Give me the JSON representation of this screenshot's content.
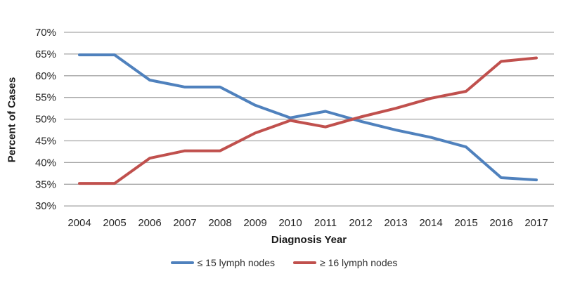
{
  "chart_data": {
    "type": "line",
    "title": "",
    "xlabel": "Diagnosis Year",
    "ylabel": "Percent of Cases",
    "x": [
      2004,
      2005,
      2006,
      2007,
      2008,
      2009,
      2010,
      2011,
      2012,
      2013,
      2014,
      2015,
      2016,
      2017
    ],
    "series": [
      {
        "name": "≤ 15 lymph nodes",
        "color": "#4F81BD",
        "values": [
          64.8,
          64.8,
          59.0,
          57.4,
          57.4,
          53.2,
          50.3,
          51.8,
          49.5,
          47.5,
          45.8,
          43.6,
          36.5,
          36.0
        ]
      },
      {
        "name": "≥ 16 lymph nodes",
        "color": "#C0504D",
        "values": [
          35.2,
          35.2,
          41.0,
          42.7,
          42.7,
          46.8,
          49.7,
          48.2,
          50.5,
          52.5,
          54.8,
          56.4,
          63.3,
          64.1
        ]
      }
    ],
    "ylim": [
      30,
      70
    ],
    "yticks": [
      30,
      35,
      40,
      45,
      50,
      55,
      60,
      65,
      70
    ],
    "ytick_labels": [
      "30%",
      "35%",
      "40%",
      "45%",
      "50%",
      "55%",
      "60%",
      "65%",
      "70%"
    ],
    "grid": "horizontal",
    "legend_position": "bottom"
  },
  "style": {
    "gridline_color": "#A6A6A6",
    "tick_text_color": "#262626",
    "line_width": 4
  }
}
